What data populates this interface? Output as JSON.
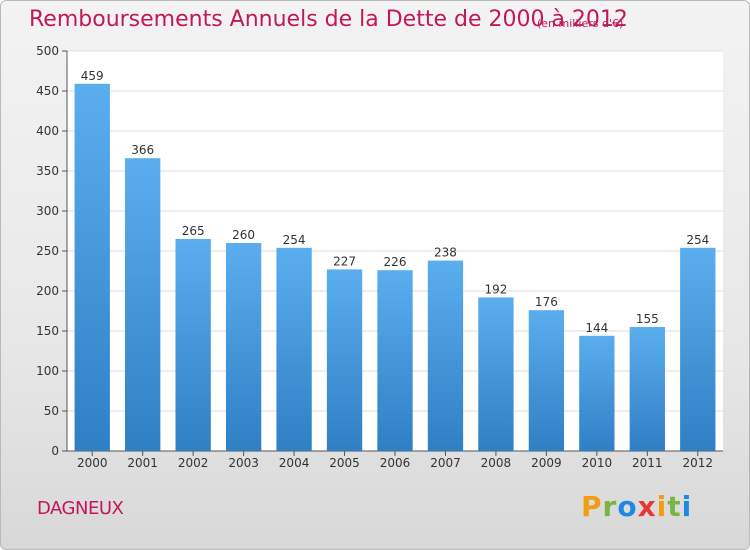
{
  "header": {
    "title": "Remboursements Annuels de la Dette de 2000 à 2012",
    "unit": "(en milliers d'€)"
  },
  "footer": {
    "commune": "DAGNEUX",
    "logo_text": "Proxiti",
    "logo_colors": [
      "#f39c12",
      "#7cb342",
      "#1e88e5",
      "#e53935",
      "#f39c12",
      "#7cb342",
      "#1e88e5"
    ]
  },
  "chart_data": {
    "type": "bar",
    "categories": [
      "2000",
      "2001",
      "2002",
      "2003",
      "2004",
      "2005",
      "2006",
      "2007",
      "2008",
      "2009",
      "2010",
      "2011",
      "2012"
    ],
    "values": [
      459,
      366,
      265,
      260,
      254,
      227,
      226,
      238,
      192,
      176,
      144,
      155,
      254
    ],
    "yticks": [
      0,
      50,
      100,
      150,
      200,
      250,
      300,
      350,
      400,
      450,
      500
    ],
    "ylim": [
      0,
      500
    ],
    "grid": true,
    "bar_color_top": "#5aaeee",
    "bar_color_bottom": "#2f7fc4"
  }
}
